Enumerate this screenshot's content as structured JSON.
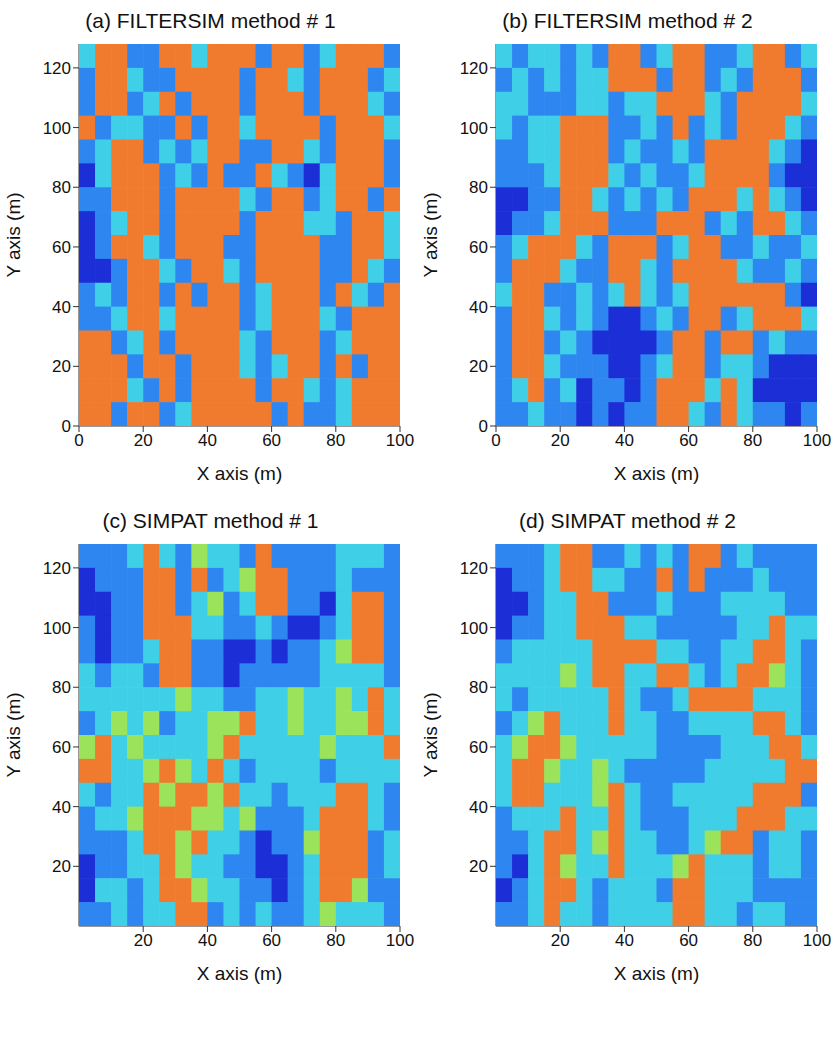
{
  "chart_data": [
    {
      "type": "heatmap",
      "title": "(a) FILTERSIM method # 1",
      "x_label": "X axis (m)",
      "y_label": "Y axis (m)",
      "xlim": [
        0,
        100
      ],
      "ylim": [
        0,
        128
      ],
      "xticks": [
        0,
        20,
        40,
        60,
        80,
        100
      ],
      "yticks": [
        0,
        20,
        40,
        60,
        80,
        100,
        120
      ],
      "zlim": [
        0,
        4
      ],
      "cells": [
        [
          2,
          4,
          4,
          1,
          1,
          4,
          4,
          2,
          4,
          4,
          4,
          1,
          4,
          4,
          1,
          2,
          4,
          4,
          4,
          1
        ],
        [
          1,
          4,
          4,
          2,
          1,
          1,
          4,
          4,
          4,
          4,
          1,
          4,
          4,
          2,
          1,
          4,
          4,
          4,
          1,
          2
        ],
        [
          1,
          4,
          4,
          1,
          2,
          4,
          1,
          4,
          4,
          4,
          1,
          4,
          4,
          4,
          1,
          4,
          4,
          4,
          2,
          1
        ],
        [
          4,
          1,
          2,
          2,
          1,
          1,
          4,
          1,
          4,
          4,
          2,
          4,
          4,
          4,
          4,
          1,
          4,
          4,
          4,
          2
        ],
        [
          1,
          2,
          4,
          4,
          1,
          2,
          1,
          2,
          4,
          4,
          1,
          1,
          4,
          4,
          2,
          1,
          4,
          4,
          4,
          1
        ],
        [
          0,
          2,
          4,
          4,
          4,
          1,
          2,
          1,
          4,
          1,
          1,
          4,
          2,
          1,
          0,
          2,
          4,
          4,
          4,
          1
        ],
        [
          1,
          1,
          4,
          4,
          4,
          1,
          4,
          4,
          4,
          4,
          2,
          1,
          4,
          4,
          1,
          2,
          4,
          4,
          1,
          4
        ],
        [
          0,
          1,
          2,
          4,
          4,
          1,
          4,
          4,
          4,
          4,
          1,
          4,
          4,
          4,
          2,
          2,
          1,
          4,
          4,
          2
        ],
        [
          0,
          1,
          4,
          4,
          2,
          1,
          4,
          4,
          4,
          1,
          1,
          4,
          4,
          4,
          4,
          1,
          1,
          4,
          4,
          2
        ],
        [
          0,
          0,
          1,
          4,
          4,
          2,
          1,
          4,
          4,
          2,
          1,
          4,
          4,
          4,
          4,
          1,
          1,
          4,
          2,
          1
        ],
        [
          1,
          2,
          1,
          4,
          4,
          1,
          4,
          1,
          4,
          4,
          1,
          2,
          4,
          4,
          4,
          1,
          4,
          2,
          1,
          4
        ],
        [
          1,
          1,
          2,
          4,
          4,
          2,
          4,
          4,
          4,
          4,
          1,
          2,
          4,
          4,
          4,
          2,
          1,
          4,
          4,
          4
        ],
        [
          4,
          4,
          1,
          2,
          4,
          1,
          4,
          4,
          4,
          4,
          2,
          1,
          4,
          4,
          4,
          1,
          2,
          4,
          4,
          4
        ],
        [
          4,
          4,
          4,
          1,
          4,
          4,
          1,
          4,
          4,
          4,
          2,
          1,
          2,
          4,
          4,
          1,
          4,
          1,
          4,
          4
        ],
        [
          4,
          4,
          4,
          2,
          1,
          4,
          1,
          4,
          4,
          4,
          4,
          1,
          4,
          4,
          2,
          1,
          2,
          4,
          4,
          4
        ],
        [
          4,
          4,
          1,
          4,
          4,
          1,
          2,
          4,
          4,
          4,
          4,
          4,
          1,
          4,
          1,
          1,
          2,
          4,
          4,
          4
        ]
      ]
    },
    {
      "type": "heatmap",
      "title": "(b) FILTERSIM method # 2",
      "x_label": "X axis (m)",
      "y_label": "Y axis (m)",
      "xlim": [
        0,
        100
      ],
      "ylim": [
        0,
        128
      ],
      "xticks": [
        0,
        20,
        40,
        60,
        80,
        100
      ],
      "yticks": [
        0,
        20,
        40,
        60,
        80,
        100,
        120
      ],
      "zlim": [
        0,
        4
      ],
      "cells": [
        [
          2,
          1,
          2,
          2,
          1,
          2,
          1,
          4,
          4,
          1,
          2,
          4,
          4,
          1,
          1,
          2,
          4,
          4,
          1,
          2
        ],
        [
          1,
          2,
          1,
          2,
          1,
          2,
          2,
          4,
          4,
          4,
          1,
          4,
          4,
          1,
          2,
          1,
          4,
          4,
          4,
          1
        ],
        [
          2,
          2,
          1,
          1,
          1,
          2,
          2,
          1,
          2,
          2,
          4,
          4,
          4,
          2,
          1,
          4,
          4,
          4,
          4,
          2
        ],
        [
          2,
          1,
          2,
          2,
          4,
          4,
          4,
          1,
          1,
          2,
          1,
          4,
          1,
          2,
          1,
          4,
          4,
          4,
          2,
          1
        ],
        [
          1,
          1,
          2,
          2,
          4,
          4,
          4,
          1,
          2,
          1,
          1,
          2,
          1,
          4,
          4,
          4,
          4,
          2,
          1,
          0
        ],
        [
          1,
          1,
          1,
          2,
          4,
          4,
          4,
          2,
          1,
          2,
          1,
          1,
          2,
          4,
          4,
          4,
          4,
          1,
          0,
          0
        ],
        [
          0,
          0,
          1,
          1,
          4,
          4,
          2,
          1,
          2,
          1,
          2,
          1,
          4,
          4,
          4,
          2,
          4,
          2,
          1,
          0
        ],
        [
          0,
          1,
          1,
          2,
          4,
          4,
          4,
          1,
          1,
          1,
          4,
          4,
          4,
          1,
          2,
          1,
          4,
          4,
          2,
          1
        ],
        [
          1,
          2,
          4,
          4,
          4,
          2,
          1,
          4,
          4,
          4,
          1,
          2,
          4,
          4,
          1,
          1,
          2,
          1,
          1,
          2
        ],
        [
          1,
          4,
          4,
          4,
          2,
          1,
          1,
          4,
          4,
          2,
          1,
          4,
          4,
          4,
          4,
          2,
          1,
          1,
          2,
          1
        ],
        [
          2,
          4,
          4,
          1,
          1,
          2,
          1,
          2,
          4,
          2,
          1,
          2,
          4,
          4,
          4,
          4,
          4,
          4,
          1,
          0
        ],
        [
          1,
          4,
          4,
          2,
          1,
          2,
          1,
          0,
          0,
          1,
          2,
          1,
          4,
          4,
          1,
          2,
          4,
          4,
          4,
          2
        ],
        [
          1,
          4,
          4,
          1,
          2,
          1,
          0,
          0,
          0,
          0,
          1,
          4,
          4,
          1,
          4,
          4,
          1,
          2,
          1,
          1
        ],
        [
          1,
          4,
          4,
          2,
          1,
          1,
          1,
          0,
          0,
          1,
          2,
          4,
          4,
          1,
          2,
          2,
          1,
          0,
          0,
          0
        ],
        [
          1,
          2,
          4,
          1,
          2,
          0,
          1,
          1,
          0,
          1,
          4,
          4,
          4,
          2,
          4,
          2,
          0,
          0,
          0,
          0
        ],
        [
          1,
          1,
          2,
          1,
          1,
          0,
          1,
          0,
          1,
          1,
          4,
          4,
          2,
          1,
          4,
          2,
          1,
          1,
          0,
          1
        ]
      ]
    },
    {
      "type": "heatmap",
      "title": "(c) SIMPAT method # 1",
      "x_label": "X axis (m)",
      "y_label": "Y axis (m)",
      "xlim": [
        0,
        100
      ],
      "ylim": [
        0,
        128
      ],
      "xticks": [
        20,
        40,
        60,
        80,
        100
      ],
      "yticks": [
        20,
        40,
        60,
        80,
        100,
        120
      ],
      "zlim": [
        0,
        4
      ],
      "cells": [
        [
          1,
          1,
          1,
          2,
          4,
          2,
          1,
          3,
          2,
          2,
          1,
          4,
          1,
          1,
          1,
          1,
          2,
          2,
          2,
          1
        ],
        [
          0,
          1,
          1,
          1,
          4,
          4,
          1,
          4,
          1,
          2,
          3,
          4,
          4,
          1,
          1,
          1,
          2,
          1,
          1,
          1
        ],
        [
          0,
          0,
          1,
          1,
          4,
          4,
          1,
          2,
          3,
          1,
          2,
          4,
          4,
          1,
          1,
          0,
          2,
          4,
          4,
          1
        ],
        [
          1,
          0,
          1,
          1,
          4,
          4,
          4,
          2,
          2,
          1,
          1,
          2,
          1,
          0,
          0,
          1,
          2,
          4,
          4,
          1
        ],
        [
          1,
          0,
          1,
          1,
          2,
          4,
          4,
          1,
          1,
          0,
          0,
          1,
          0,
          1,
          1,
          2,
          3,
          4,
          4,
          1
        ],
        [
          2,
          1,
          2,
          2,
          1,
          4,
          4,
          1,
          1,
          0,
          1,
          1,
          1,
          1,
          1,
          2,
          2,
          2,
          2,
          1
        ],
        [
          2,
          2,
          2,
          2,
          2,
          2,
          3,
          2,
          2,
          1,
          1,
          2,
          2,
          3,
          2,
          2,
          3,
          2,
          4,
          2
        ],
        [
          1,
          2,
          3,
          2,
          3,
          1,
          2,
          2,
          3,
          3,
          4,
          2,
          2,
          3,
          2,
          2,
          3,
          3,
          4,
          2
        ],
        [
          3,
          4,
          2,
          3,
          2,
          2,
          2,
          2,
          3,
          4,
          2,
          2,
          2,
          2,
          2,
          3,
          2,
          2,
          2,
          4
        ],
        [
          4,
          4,
          2,
          2,
          3,
          4,
          3,
          2,
          4,
          2,
          1,
          2,
          2,
          2,
          2,
          1,
          2,
          2,
          2,
          2
        ],
        [
          2,
          1,
          2,
          2,
          4,
          3,
          4,
          4,
          3,
          4,
          2,
          2,
          1,
          2,
          2,
          2,
          4,
          4,
          2,
          1
        ],
        [
          1,
          2,
          2,
          3,
          4,
          4,
          4,
          3,
          3,
          2,
          3,
          1,
          1,
          1,
          2,
          4,
          4,
          4,
          2,
          1
        ],
        [
          1,
          1,
          1,
          2,
          4,
          4,
          3,
          4,
          2,
          2,
          1,
          0,
          1,
          1,
          3,
          4,
          4,
          4,
          1,
          2
        ],
        [
          0,
          1,
          1,
          2,
          2,
          4,
          3,
          2,
          2,
          1,
          1,
          0,
          0,
          1,
          2,
          4,
          4,
          4,
          1,
          2
        ],
        [
          0,
          2,
          2,
          1,
          2,
          4,
          4,
          3,
          2,
          2,
          1,
          1,
          0,
          1,
          2,
          4,
          4,
          3,
          1,
          1
        ],
        [
          1,
          1,
          2,
          1,
          2,
          2,
          4,
          4,
          1,
          2,
          1,
          2,
          1,
          1,
          2,
          3,
          2,
          2,
          2,
          1
        ]
      ]
    },
    {
      "type": "heatmap",
      "title": "(d) SIMPAT method # 2",
      "x_label": "X axis (m)",
      "y_label": "Y axis (m)",
      "xlim": [
        0,
        100
      ],
      "ylim": [
        0,
        128
      ],
      "xticks": [
        20,
        40,
        60,
        80,
        100
      ],
      "yticks": [
        20,
        40,
        60,
        80,
        100,
        120
      ],
      "zlim": [
        0,
        4
      ],
      "cells": [
        [
          1,
          1,
          1,
          2,
          4,
          4,
          1,
          1,
          2,
          1,
          2,
          1,
          4,
          4,
          1,
          2,
          1,
          1,
          1,
          1
        ],
        [
          0,
          1,
          1,
          2,
          4,
          4,
          2,
          2,
          1,
          1,
          4,
          1,
          4,
          1,
          1,
          1,
          2,
          1,
          1,
          1
        ],
        [
          0,
          0,
          1,
          2,
          2,
          4,
          4,
          1,
          1,
          1,
          2,
          1,
          1,
          1,
          2,
          2,
          2,
          2,
          1,
          1
        ],
        [
          0,
          1,
          1,
          2,
          2,
          4,
          4,
          4,
          2,
          2,
          1,
          1,
          1,
          1,
          1,
          2,
          2,
          4,
          2,
          2
        ],
        [
          1,
          2,
          2,
          2,
          2,
          2,
          4,
          4,
          4,
          4,
          2,
          2,
          1,
          1,
          2,
          2,
          4,
          4,
          2,
          1
        ],
        [
          2,
          2,
          2,
          2,
          3,
          2,
          4,
          4,
          2,
          2,
          4,
          4,
          2,
          1,
          2,
          4,
          4,
          3,
          2,
          1
        ],
        [
          2,
          1,
          2,
          2,
          2,
          2,
          2,
          4,
          2,
          1,
          1,
          2,
          4,
          4,
          4,
          4,
          2,
          2,
          2,
          1
        ],
        [
          1,
          2,
          3,
          4,
          2,
          2,
          2,
          4,
          2,
          2,
          1,
          1,
          2,
          2,
          2,
          2,
          4,
          4,
          2,
          1
        ],
        [
          2,
          3,
          4,
          4,
          3,
          2,
          2,
          2,
          2,
          2,
          1,
          1,
          1,
          1,
          2,
          2,
          2,
          4,
          4,
          2
        ],
        [
          2,
          4,
          4,
          3,
          2,
          2,
          3,
          2,
          1,
          1,
          1,
          1,
          1,
          2,
          2,
          2,
          2,
          2,
          4,
          4
        ],
        [
          2,
          4,
          4,
          2,
          2,
          2,
          3,
          4,
          2,
          1,
          1,
          2,
          2,
          2,
          2,
          2,
          4,
          4,
          4,
          1
        ],
        [
          1,
          2,
          2,
          2,
          4,
          2,
          2,
          4,
          2,
          1,
          1,
          1,
          2,
          2,
          2,
          4,
          4,
          4,
          2,
          2
        ],
        [
          1,
          1,
          2,
          4,
          4,
          2,
          3,
          4,
          2,
          2,
          1,
          1,
          2,
          3,
          4,
          4,
          1,
          2,
          2,
          1
        ],
        [
          1,
          0,
          2,
          4,
          3,
          2,
          2,
          4,
          2,
          2,
          2,
          3,
          4,
          2,
          2,
          2,
          1,
          2,
          2,
          1
        ],
        [
          0,
          1,
          2,
          4,
          4,
          2,
          1,
          2,
          2,
          2,
          1,
          4,
          4,
          2,
          2,
          2,
          1,
          1,
          1,
          1
        ],
        [
          1,
          1,
          2,
          4,
          2,
          2,
          1,
          2,
          2,
          2,
          2,
          4,
          4,
          2,
          2,
          1,
          2,
          2,
          1,
          1
        ]
      ]
    }
  ]
}
